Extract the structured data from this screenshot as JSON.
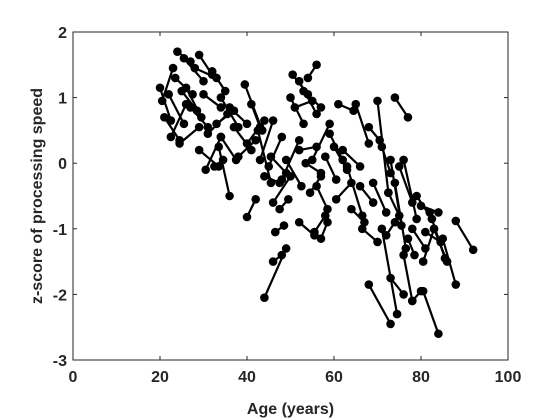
{
  "chart_data": {
    "type": "line",
    "title": "",
    "xlabel": "Age (years)",
    "ylabel": "z-score of processing speed",
    "xlim": [
      0,
      100
    ],
    "ylim": [
      -3,
      2
    ],
    "xticks": [
      0,
      20,
      40,
      60,
      80,
      100
    ],
    "yticks": [
      -3,
      -2,
      -1,
      0,
      1,
      2
    ],
    "grid": false,
    "legend": "none",
    "line_color": "#000000",
    "marker": "filled-circle",
    "series": [
      {
        "x": [
          20.0,
          22.5
        ],
        "y": [
          1.15,
          0.65
        ]
      },
      {
        "x": [
          20.5,
          23.0
        ],
        "y": [
          0.95,
          1.45
        ]
      },
      {
        "x": [
          21.0,
          24.5
        ],
        "y": [
          0.7,
          0.35
        ]
      },
      {
        "x": [
          22.0,
          25.5
        ],
        "y": [
          1.05,
          0.6
        ]
      },
      {
        "x": [
          22.5,
          26.0
        ],
        "y": [
          0.4,
          0.9
        ]
      },
      {
        "x": [
          23.5,
          27.5
        ],
        "y": [
          1.3,
          1.05
        ]
      },
      {
        "x": [
          24.0,
          27.0
        ],
        "y": [
          1.7,
          1.55
        ]
      },
      {
        "x": [
          24.5,
          29.0
        ],
        "y": [
          0.3,
          0.55
        ]
      },
      {
        "x": [
          25.0,
          28.5
        ],
        "y": [
          1.1,
          0.8
        ]
      },
      {
        "x": [
          25.5,
          30.0
        ],
        "y": [
          1.6,
          1.25
        ]
      },
      {
        "x": [
          26.0,
          29.5
        ],
        "y": [
          1.15,
          0.7
        ]
      },
      {
        "x": [
          27.0,
          31.0
        ],
        "y": [
          0.85,
          0.55
        ]
      },
      {
        "x": [
          28.0,
          33.0
        ],
        "y": [
          1.45,
          1.3
        ]
      },
      {
        "x": [
          29.0,
          32.0
        ],
        "y": [
          1.65,
          1.35
        ]
      },
      {
        "x": [
          30.0,
          34.0
        ],
        "y": [
          1.05,
          0.85
        ]
      },
      {
        "x": [
          31.0,
          35.5
        ],
        "y": [
          0.45,
          0.75
        ]
      },
      {
        "x": [
          32.0,
          35.0
        ],
        "y": [
          1.4,
          1.1
        ]
      },
      {
        "x": [
          33.0,
          37.0
        ],
        "y": [
          0.6,
          0.8
        ]
      },
      {
        "x": [
          34.0,
          38.0
        ],
        "y": [
          1.0,
          0.55
        ]
      },
      {
        "x": [
          29.0,
          33.5
        ],
        "y": [
          0.2,
          -0.05
        ]
      },
      {
        "x": [
          30.5,
          34.0
        ],
        "y": [
          -0.1,
          0.4
        ]
      },
      {
        "x": [
          32.5,
          34.5
        ],
        "y": [
          -0.05,
          0.05
        ]
      },
      {
        "x": [
          33.5,
          36.0
        ],
        "y": [
          0.25,
          -0.5
        ]
      },
      {
        "x": [
          34.0,
          37.5
        ],
        "y": [
          0.4,
          0.05
        ]
      },
      {
        "x": [
          36.0,
          40.0
        ],
        "y": [
          0.85,
          0.6
        ]
      },
      {
        "x": [
          37.0,
          41.0
        ],
        "y": [
          0.55,
          0.2
        ]
      },
      {
        "x": [
          38.0,
          42.0
        ],
        "y": [
          0.1,
          0.35
        ]
      },
      {
        "x": [
          39.5,
          43.5
        ],
        "y": [
          1.2,
          0.5
        ]
      },
      {
        "x": [
          40.0,
          44.0
        ],
        "y": [
          0.3,
          0.65
        ]
      },
      {
        "x": [
          41.0,
          43.0
        ],
        "y": [
          0.9,
          0.55
        ]
      },
      {
        "x": [
          42.5,
          45.5
        ],
        "y": [
          0.5,
          -0.3
        ]
      },
      {
        "x": [
          42.0,
          40.0
        ],
        "y": [
          -0.55,
          -0.82
        ]
      },
      {
        "x": [
          43.0,
          46.0
        ],
        "y": [
          0.05,
          0.65
        ]
      },
      {
        "x": [
          44.0,
          47.5
        ],
        "y": [
          -0.2,
          -0.3
        ]
      },
      {
        "x": [
          45.0,
          48.0
        ],
        "y": [
          -0.05,
          0.4
        ]
      },
      {
        "x": [
          45.5,
          49.0
        ],
        "y": [
          0.1,
          -0.15
        ]
      },
      {
        "x": [
          46.0,
          50.0
        ],
        "y": [
          -0.6,
          -0.2
        ]
      },
      {
        "x": [
          44.0,
          49.0
        ],
        "y": [
          -2.05,
          -1.3
        ]
      },
      {
        "x": [
          46.0,
          48.0
        ],
        "y": [
          -1.5,
          -1.4
        ]
      },
      {
        "x": [
          46.5,
          48.5
        ],
        "y": [
          -1.05,
          -0.95
        ]
      },
      {
        "x": [
          47.5,
          49.5
        ],
        "y": [
          -0.7,
          -0.55
        ]
      },
      {
        "x": [
          48.0,
          52.0
        ],
        "y": [
          -0.25,
          0.35
        ]
      },
      {
        "x": [
          49.0,
          52.5
        ],
        "y": [
          0.05,
          -0.35
        ]
      },
      {
        "x": [
          50.0,
          53.0
        ],
        "y": [
          1.0,
          0.6
        ]
      },
      {
        "x": [
          50.5,
          54.0
        ],
        "y": [
          1.35,
          1.05
        ]
      },
      {
        "x": [
          51.0,
          55.0
        ],
        "y": [
          0.85,
          0.95
        ]
      },
      {
        "x": [
          52.0,
          56.0
        ],
        "y": [
          1.25,
          0.75
        ]
      },
      {
        "x": [
          53.0,
          57.0
        ],
        "y": [
          1.1,
          0.85
        ]
      },
      {
        "x": [
          54.0,
          56.0
        ],
        "y": [
          1.3,
          1.5
        ]
      },
      {
        "x": [
          52.0,
          56.0
        ],
        "y": [
          0.2,
          0.25
        ]
      },
      {
        "x": [
          53.5,
          57.0
        ],
        "y": [
          0.0,
          -0.15
        ]
      },
      {
        "x": [
          55.0,
          59.0
        ],
        "y": [
          0.05,
          0.6
        ]
      },
      {
        "x": [
          52.0,
          55.5
        ],
        "y": [
          -0.9,
          -1.1
        ]
      },
      {
        "x": [
          54.5,
          57.0
        ],
        "y": [
          -0.45,
          -0.2
        ]
      },
      {
        "x": [
          55.5,
          58.0
        ],
        "y": [
          -1.05,
          -0.8
        ]
      },
      {
        "x": [
          56.0,
          58.5
        ],
        "y": [
          -0.35,
          -0.7
        ]
      },
      {
        "x": [
          57.0,
          58.5
        ],
        "y": [
          -1.15,
          -0.9
        ]
      },
      {
        "x": [
          58.0,
          60.5
        ],
        "y": [
          0.1,
          -0.25
        ]
      },
      {
        "x": [
          59.0,
          62.0
        ],
        "y": [
          0.45,
          0.05
        ]
      },
      {
        "x": [
          60.0,
          63.0
        ],
        "y": [
          0.25,
          -0.1
        ]
      },
      {
        "x": [
          60.5,
          64.0
        ],
        "y": [
          -0.55,
          -0.3
        ]
      },
      {
        "x": [
          61.0,
          64.5
        ],
        "y": [
          0.9,
          0.8
        ]
      },
      {
        "x": [
          62.0,
          66.0
        ],
        "y": [
          0.2,
          -0.05
        ]
      },
      {
        "x": [
          63.0,
          66.5
        ],
        "y": [
          -0.05,
          -0.8
        ]
      },
      {
        "x": [
          64.0,
          67.0
        ],
        "y": [
          -0.7,
          -0.9
        ]
      },
      {
        "x": [
          65.0,
          68.0
        ],
        "y": [
          0.9,
          0.3
        ]
      },
      {
        "x": [
          66.0,
          69.0
        ],
        "y": [
          -0.35,
          -0.6
        ]
      },
      {
        "x": [
          66.5,
          70.0
        ],
        "y": [
          -1.0,
          -1.2
        ]
      },
      {
        "x": [
          68.0,
          70.5
        ],
        "y": [
          0.55,
          0.35
        ]
      },
      {
        "x": [
          69.0,
          72.0
        ],
        "y": [
          -0.3,
          -0.75
        ]
      },
      {
        "x": [
          70.0,
          72.5
        ],
        "y": [
          0.95,
          -0.45
        ]
      },
      {
        "x": [
          71.0,
          73.0
        ],
        "y": [
          0.25,
          -0.15
        ]
      },
      {
        "x": [
          72.0,
          74.0
        ],
        "y": [
          -1.1,
          -0.9
        ]
      },
      {
        "x": [
          72.5,
          75.0
        ],
        "y": [
          -0.45,
          -0.8
        ]
      },
      {
        "x": [
          73.0,
          75.5
        ],
        "y": [
          0.05,
          -0.95
        ]
      },
      {
        "x": [
          74.0,
          76.5
        ],
        "y": [
          -0.3,
          -1.3
        ]
      },
      {
        "x": [
          75.0,
          78.0
        ],
        "y": [
          -0.05,
          -0.6
        ]
      },
      {
        "x": [
          76.0,
          79.0
        ],
        "y": [
          0.05,
          -0.85
        ]
      },
      {
        "x": [
          77.0,
          78.5
        ],
        "y": [
          -1.15,
          -1.4
        ]
      },
      {
        "x": [
          68.0,
          73.0
        ],
        "y": [
          -1.85,
          -2.45
        ]
      },
      {
        "x": [
          71.0,
          74.5
        ],
        "y": [
          -1.0,
          -2.3
        ]
      },
      {
        "x": [
          73.0,
          76.0
        ],
        "y": [
          -1.75,
          -2.0
        ]
      },
      {
        "x": [
          76.0,
          78.0
        ],
        "y": [
          -1.4,
          -2.1
        ]
      },
      {
        "x": [
          74.0,
          77.0
        ],
        "y": [
          1.0,
          0.7
        ]
      },
      {
        "x": [
          78.0,
          81.0
        ],
        "y": [
          -1.0,
          -1.3
        ]
      },
      {
        "x": [
          79.0,
          82.5
        ],
        "y": [
          -0.5,
          -0.85
        ]
      },
      {
        "x": [
          80.0,
          84.0
        ],
        "y": [
          -0.65,
          -0.75
        ]
      },
      {
        "x": [
          80.5,
          83.0
        ],
        "y": [
          -1.5,
          -1.0
        ]
      },
      {
        "x": [
          81.0,
          84.5
        ],
        "y": [
          -1.05,
          -1.2
        ]
      },
      {
        "x": [
          80.0,
          78.0
        ],
        "y": [
          -1.95,
          -2.1
        ]
      },
      {
        "x": [
          82.0,
          85.5
        ],
        "y": [
          -0.75,
          -1.45
        ]
      },
      {
        "x": [
          83.0,
          86.0
        ],
        "y": [
          -1.0,
          -1.5
        ]
      },
      {
        "x": [
          84.0,
          80.5
        ],
        "y": [
          -2.6,
          -1.95
        ]
      },
      {
        "x": [
          85.0,
          88.0
        ],
        "y": [
          -1.15,
          -1.85
        ]
      },
      {
        "x": [
          88.0,
          92.0
        ],
        "y": [
          -0.88,
          -1.32
        ]
      }
    ]
  }
}
